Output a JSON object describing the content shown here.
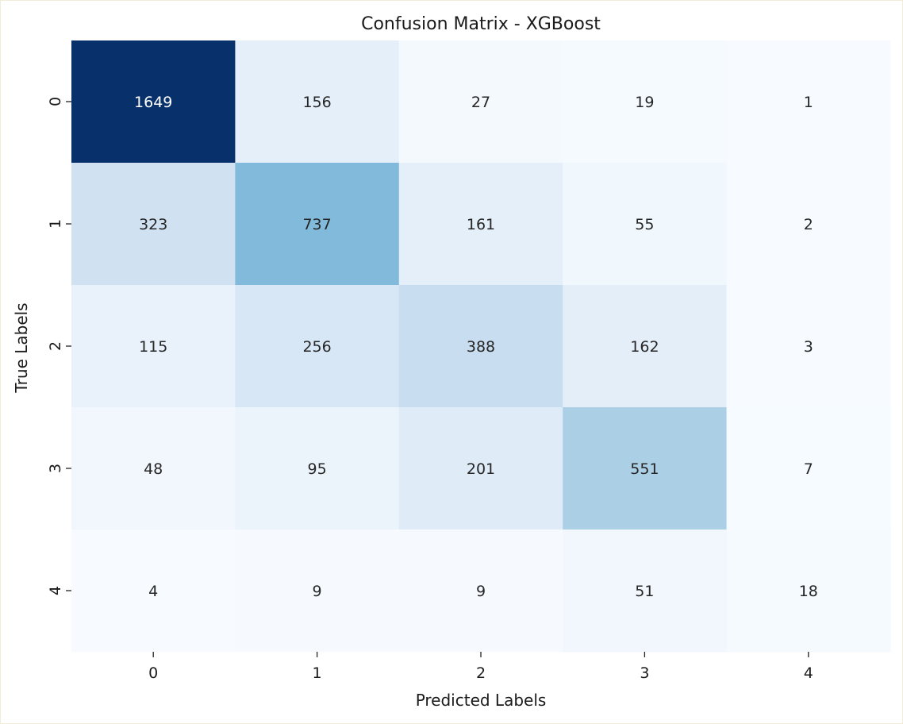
{
  "chart_data": {
    "type": "heatmap",
    "title": "Confusion Matrix - XGBoost",
    "xlabel": "Predicted Labels",
    "ylabel": "True Labels",
    "x_categories": [
      "0",
      "1",
      "2",
      "3",
      "4"
    ],
    "y_categories": [
      "0",
      "1",
      "2",
      "3",
      "4"
    ],
    "values": [
      [
        1649,
        156,
        27,
        19,
        1
      ],
      [
        323,
        737,
        161,
        55,
        2
      ],
      [
        115,
        256,
        388,
        162,
        3
      ],
      [
        48,
        95,
        201,
        551,
        7
      ],
      [
        4,
        9,
        9,
        51,
        18
      ]
    ],
    "colormap": "Blues",
    "colorbar": false,
    "grid": false
  }
}
